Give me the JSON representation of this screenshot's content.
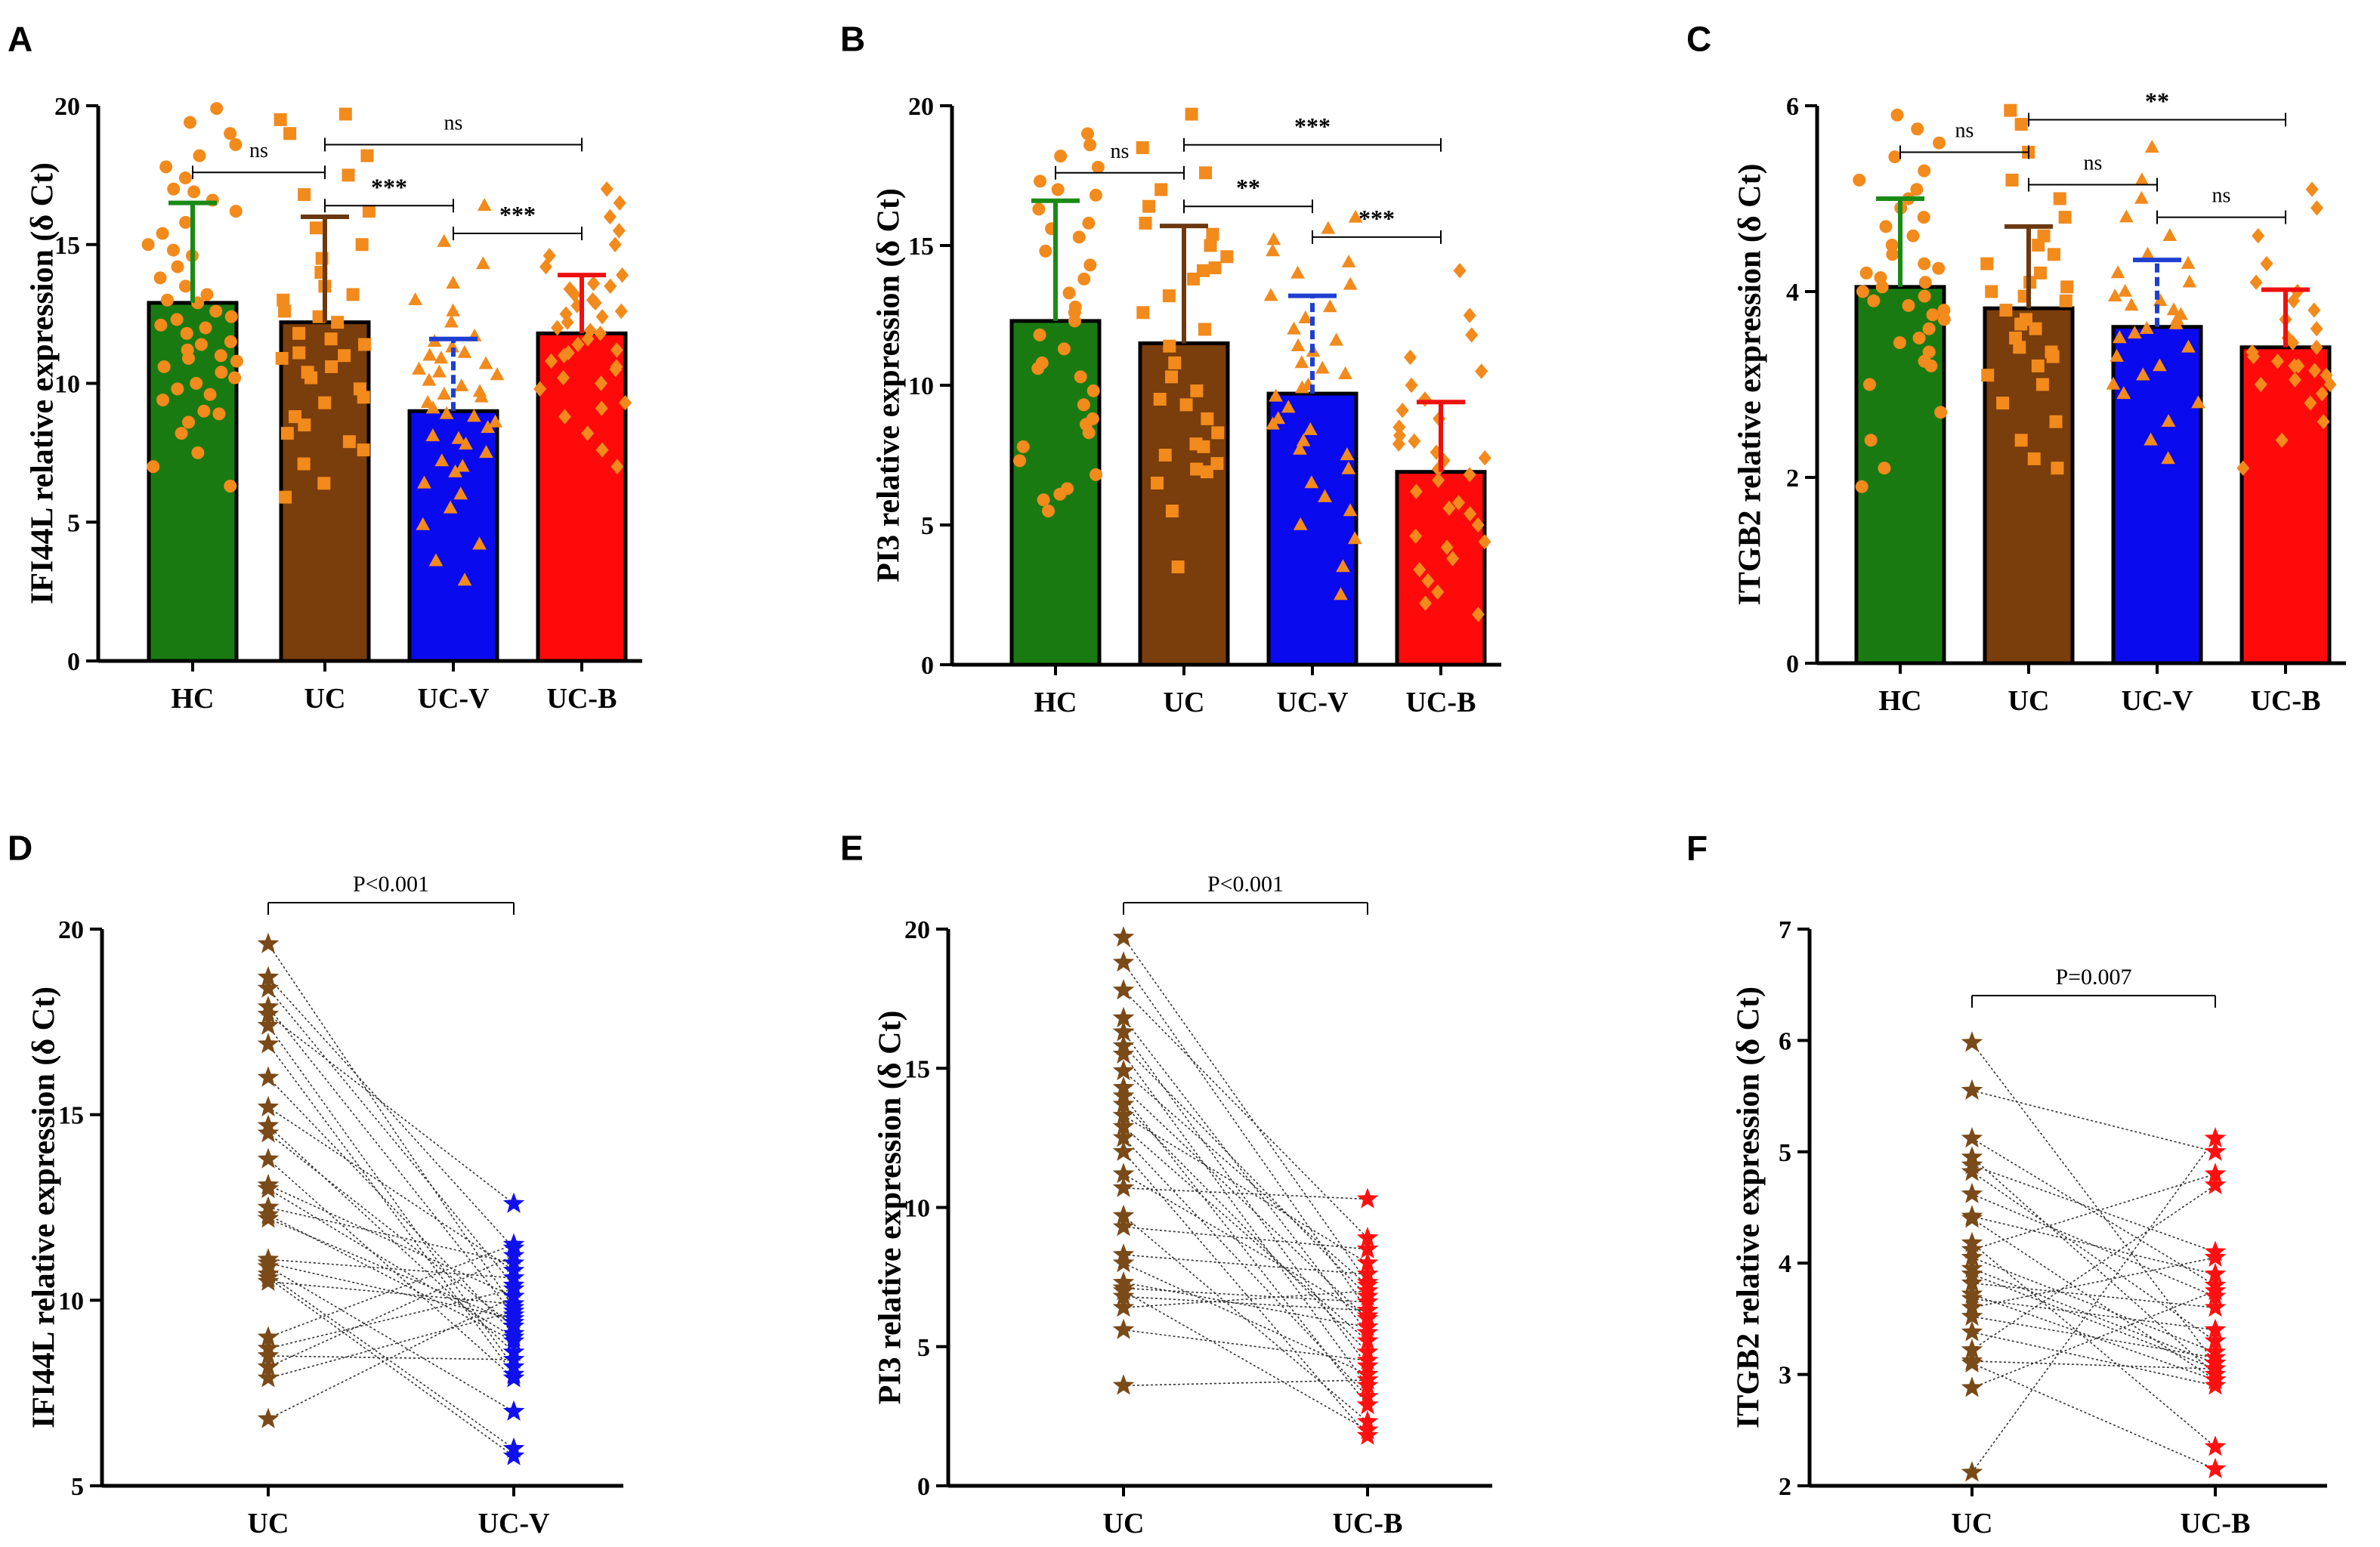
{
  "chart_data": [
    {
      "panel": "A",
      "type": "bar",
      "ylabel": "IFI44L relative expression (δ Ct)",
      "ylim": [
        0,
        20
      ],
      "yticks": [
        0,
        5,
        10,
        15,
        20
      ],
      "categories": [
        "HC",
        "UC",
        "UC-V",
        "UC-B"
      ],
      "values": [
        12.9,
        12.2,
        9.0,
        11.8
      ],
      "error": [
        3.6,
        3.8,
        2.6,
        2.1
      ],
      "colors": [
        "#1a7a12",
        "#7a3d0c",
        "#0a0aee",
        "#ff0a0a"
      ],
      "errorColors": [
        "#1a8a16",
        "#6b3810",
        "#1e3fd0",
        "#ee1010"
      ],
      "markers": [
        "circle",
        "square",
        "triangle",
        "diamond"
      ],
      "points": [
        [
          6.3,
          7.0,
          7.5,
          8.2,
          8.6,
          9.0,
          9.4,
          9.8,
          10.0,
          10.2,
          10.4,
          10.6,
          10.8,
          11.0,
          11.2,
          11.5,
          11.8,
          12.0,
          12.3,
          12.6,
          12.9,
          13.2,
          13.5,
          13.8,
          14.2,
          14.6,
          15.0,
          15.4,
          15.8,
          16.2,
          16.6,
          17.0,
          17.4,
          17.8,
          18.2,
          18.6,
          19.0,
          19.4,
          19.9,
          11.4,
          12.4,
          10.9,
          13.0,
          9.6,
          8.9,
          14.8,
          16.9,
          12.1
        ],
        [
          5.9,
          6.4,
          7.1,
          7.6,
          8.2,
          8.8,
          9.3,
          9.8,
          10.2,
          10.6,
          11.0,
          11.4,
          11.8,
          12.2,
          12.6,
          13.0,
          13.5,
          14.0,
          14.5,
          15.0,
          15.6,
          16.2,
          16.8,
          17.5,
          18.2,
          19.0,
          19.5,
          19.7,
          10.4,
          11.1,
          9.5,
          8.5,
          12.4,
          13.2,
          7.9,
          10.9,
          11.6
        ],
        [
          2.9,
          3.6,
          4.2,
          4.9,
          5.5,
          6.0,
          6.4,
          6.8,
          7.2,
          7.5,
          7.8,
          8.1,
          8.4,
          8.6,
          8.9,
          9.1,
          9.3,
          9.5,
          9.7,
          9.9,
          10.1,
          10.3,
          10.5,
          10.7,
          10.9,
          11.1,
          11.3,
          11.5,
          11.7,
          12.2,
          12.6,
          13.0,
          13.6,
          14.3,
          15.1,
          16.4,
          8.0,
          8.8,
          9.6,
          10.4,
          7.0,
          11.0
        ],
        [
          7.0,
          7.6,
          8.2,
          8.8,
          9.3,
          9.8,
          10.2,
          10.5,
          10.8,
          11.0,
          11.2,
          11.4,
          11.6,
          11.8,
          12.0,
          12.2,
          12.4,
          12.6,
          12.8,
          13.0,
          13.2,
          13.4,
          13.6,
          13.9,
          14.2,
          14.6,
          15.0,
          15.5,
          16.0,
          16.5,
          17.0,
          11.1,
          11.9,
          12.5,
          10.0,
          9.1,
          12.9,
          13.5,
          10.6
        ]
      ],
      "significance": [
        {
          "from": 0,
          "to": 1,
          "label": "ns",
          "y": 17.6
        },
        {
          "from": 1,
          "to": 3,
          "label": "ns",
          "y": 18.6
        },
        {
          "from": 1,
          "to": 2,
          "label": "***",
          "y": 16.4
        },
        {
          "from": 2,
          "to": 3,
          "label": "***",
          "y": 15.4
        }
      ]
    },
    {
      "panel": "B",
      "type": "bar",
      "ylabel": "PI3 relative expression (δ Ct)",
      "ylim": [
        0,
        20
      ],
      "yticks": [
        0,
        5,
        10,
        15,
        20
      ],
      "categories": [
        "HC",
        "UC",
        "UC-V",
        "UC-B"
      ],
      "values": [
        12.3,
        11.5,
        9.7,
        6.9
      ],
      "error": [
        4.3,
        4.2,
        3.5,
        2.5
      ],
      "colors": [
        "#1a7a12",
        "#7a3d0c",
        "#0a0aee",
        "#ff0a0a"
      ],
      "errorColors": [
        "#1a8a16",
        "#6b3810",
        "#1e3fd0",
        "#ee1010"
      ],
      "markers": [
        "circle",
        "square",
        "triangle",
        "diamond"
      ],
      "points": [
        [
          5.5,
          5.9,
          6.3,
          6.8,
          7.3,
          7.8,
          8.3,
          8.8,
          9.3,
          9.8,
          10.3,
          10.8,
          11.3,
          11.8,
          12.3,
          12.8,
          13.3,
          13.8,
          14.3,
          14.8,
          15.3,
          15.8,
          16.3,
          16.8,
          17.3,
          17.8,
          18.2,
          18.6,
          19.0,
          12.6,
          10.6,
          8.6,
          15.6,
          17.0,
          6.1
        ],
        [
          3.5,
          5.5,
          6.5,
          6.9,
          7.2,
          7.5,
          7.9,
          8.3,
          8.8,
          9.3,
          9.8,
          10.3,
          10.8,
          11.4,
          12.0,
          12.6,
          13.2,
          13.8,
          14.2,
          14.6,
          15.0,
          15.4,
          15.8,
          16.4,
          17.0,
          17.6,
          18.5,
          19.7,
          7.0,
          7.8,
          14.1,
          9.5
        ],
        [
          2.5,
          3.5,
          4.5,
          5.0,
          5.5,
          6.0,
          6.5,
          7.0,
          7.5,
          8.0,
          8.4,
          8.8,
          9.2,
          9.6,
          10.0,
          10.4,
          10.8,
          11.2,
          11.6,
          12.0,
          12.4,
          12.8,
          13.2,
          13.6,
          14.0,
          14.4,
          14.8,
          15.2,
          15.6,
          16.0,
          9.9,
          10.6,
          11.4,
          8.6,
          7.7
        ],
        [
          1.8,
          2.2,
          2.6,
          3.0,
          3.4,
          3.8,
          4.2,
          4.6,
          5.0,
          5.4,
          5.8,
          6.2,
          6.6,
          7.0,
          7.3,
          7.6,
          7.9,
          8.2,
          8.5,
          8.8,
          9.1,
          9.5,
          10.0,
          10.5,
          11.0,
          11.8,
          12.5,
          14.1,
          6.8,
          7.4,
          4.4,
          5.6,
          8.0
        ]
      ],
      "significance": [
        {
          "from": 0,
          "to": 1,
          "label": "ns",
          "y": 17.6
        },
        {
          "from": 1,
          "to": 3,
          "label": "***",
          "y": 18.6
        },
        {
          "from": 1,
          "to": 2,
          "label": "**",
          "y": 16.4
        },
        {
          "from": 2,
          "to": 3,
          "label": "***",
          "y": 15.3
        }
      ]
    },
    {
      "panel": "C",
      "type": "bar",
      "ylabel": "ITGB2 relative expression (δ Ct)",
      "ylim": [
        0,
        6
      ],
      "yticks": [
        0,
        2,
        4,
        6
      ],
      "categories": [
        "HC",
        "UC",
        "UC-V",
        "UC-B"
      ],
      "values": [
        4.05,
        3.82,
        3.62,
        3.4
      ],
      "error": [
        0.95,
        0.88,
        0.72,
        0.62
      ],
      "colors": [
        "#1a7a12",
        "#7a3d0c",
        "#0a0aee",
        "#ff0a0a"
      ],
      "errorColors": [
        "#1a8a16",
        "#6b3810",
        "#1e3fd0",
        "#ee1010"
      ],
      "markers": [
        "circle",
        "square",
        "triangle",
        "diamond"
      ],
      "points": [
        [
          1.9,
          2.1,
          2.4,
          2.7,
          3.0,
          3.2,
          3.35,
          3.5,
          3.6,
          3.7,
          3.8,
          3.85,
          3.9,
          3.95,
          4.0,
          4.05,
          4.1,
          4.15,
          4.2,
          4.3,
          4.4,
          4.5,
          4.6,
          4.7,
          4.8,
          4.9,
          5.0,
          5.1,
          5.2,
          5.3,
          5.45,
          5.6,
          5.75,
          5.9,
          3.45,
          3.75,
          4.25,
          3.25
        ],
        [
          2.1,
          2.2,
          2.4,
          2.6,
          2.8,
          3.0,
          3.1,
          3.2,
          3.3,
          3.4,
          3.5,
          3.6,
          3.7,
          3.8,
          3.9,
          4.0,
          4.05,
          4.1,
          4.2,
          4.3,
          4.4,
          4.5,
          4.6,
          4.8,
          5.0,
          5.2,
          5.5,
          5.8,
          5.95,
          3.95,
          3.65,
          3.35
        ],
        [
          2.2,
          2.4,
          2.6,
          2.8,
          2.9,
          3.0,
          3.1,
          3.2,
          3.3,
          3.4,
          3.5,
          3.6,
          3.65,
          3.7,
          3.8,
          3.85,
          3.9,
          3.95,
          4.0,
          4.1,
          4.2,
          4.3,
          4.4,
          4.6,
          4.8,
          5.0,
          5.2,
          5.55,
          3.55,
          3.75
        ],
        [
          2.1,
          2.4,
          2.6,
          2.8,
          2.9,
          3.0,
          3.05,
          3.1,
          3.15,
          3.2,
          3.25,
          3.3,
          3.35,
          3.4,
          3.5,
          3.6,
          3.7,
          3.8,
          3.9,
          4.0,
          4.1,
          4.3,
          4.6,
          4.9,
          5.1,
          3.2,
          3.45,
          3.0
        ]
      ],
      "significance": [
        {
          "from": 0,
          "to": 1,
          "label": "ns",
          "y": 5.5
        },
        {
          "from": 1,
          "to": 3,
          "label": "**",
          "y": 5.85
        },
        {
          "from": 1,
          "to": 2,
          "label": "ns",
          "y": 5.15
        },
        {
          "from": 2,
          "to": 3,
          "label": "ns",
          "y": 4.8
        }
      ]
    },
    {
      "panel": "D",
      "type": "scatter",
      "subtype": "paired",
      "ylabel": "IFI44L  relative expression (δ Ct)",
      "ylim": [
        5,
        20
      ],
      "yticks": [
        5,
        10,
        15,
        20
      ],
      "categories": [
        "UC",
        "UC-V"
      ],
      "colors": [
        "#7a4a18",
        "#1010ee"
      ],
      "pvalue": "P<0.001",
      "pairs": [
        [
          19.6,
          9.8
        ],
        [
          18.7,
          11.4
        ],
        [
          18.4,
          10.4
        ],
        [
          17.9,
          9.6
        ],
        [
          17.7,
          12.6
        ],
        [
          17.4,
          8.2
        ],
        [
          16.0,
          9.1
        ],
        [
          15.2,
          10.8
        ],
        [
          14.7,
          8.6
        ],
        [
          14.5,
          9.3
        ],
        [
          13.8,
          7.9
        ],
        [
          13.1,
          10.1
        ],
        [
          12.5,
          11.0
        ],
        [
          12.3,
          8.9
        ],
        [
          12.2,
          9.4
        ],
        [
          11.1,
          10.6
        ],
        [
          10.9,
          7.0
        ],
        [
          10.7,
          6.0
        ],
        [
          10.6,
          5.8
        ],
        [
          10.5,
          9.9
        ],
        [
          9.0,
          11.5
        ],
        [
          8.7,
          10.3
        ],
        [
          8.5,
          8.4
        ],
        [
          8.2,
          11.2
        ],
        [
          7.9,
          9.7
        ],
        [
          6.8,
          10.1
        ],
        [
          16.9,
          8.0
        ],
        [
          13.0,
          9.0
        ],
        [
          11.0,
          9.5
        ]
      ]
    },
    {
      "panel": "E",
      "type": "scatter",
      "subtype": "paired",
      "ylabel": "PI3 relative expression (δ Ct)",
      "ylim": [
        0,
        20
      ],
      "yticks": [
        0,
        5,
        10,
        15,
        20
      ],
      "categories": [
        "UC",
        "UC-B"
      ],
      "colors": [
        "#7a4a18",
        "#ff1010"
      ],
      "pvalue": "P<0.001",
      "pairs": [
        [
          19.7,
          7.3
        ],
        [
          18.8,
          6.3
        ],
        [
          17.8,
          8.9
        ],
        [
          16.8,
          5.5
        ],
        [
          16.3,
          4.3
        ],
        [
          15.8,
          6.8
        ],
        [
          15.5,
          3.6
        ],
        [
          14.9,
          7.2
        ],
        [
          14.3,
          6.0
        ],
        [
          14.0,
          2.9
        ],
        [
          13.7,
          4.8
        ],
        [
          13.3,
          8.0
        ],
        [
          12.9,
          5.2
        ],
        [
          12.5,
          3.2
        ],
        [
          10.7,
          10.3
        ],
        [
          9.7,
          2.3
        ],
        [
          9.3,
          8.5
        ],
        [
          8.3,
          7.6
        ],
        [
          8.0,
          4.0
        ],
        [
          7.3,
          5.7
        ],
        [
          7.1,
          6.6
        ],
        [
          7.0,
          2.0
        ],
        [
          6.8,
          6.3
        ],
        [
          6.4,
          7.0
        ],
        [
          5.6,
          4.5
        ],
        [
          3.6,
          3.8
        ],
        [
          12.0,
          1.8
        ],
        [
          11.2,
          6.1
        ]
      ]
    },
    {
      "panel": "F",
      "type": "scatter",
      "subtype": "paired",
      "ylabel": "ITGB2 relative expression (δ Ct)",
      "ylim": [
        2,
        7
      ],
      "yticks": [
        2,
        3,
        4,
        5,
        6,
        7
      ],
      "categories": [
        "UC",
        "UC-B"
      ],
      "colors": [
        "#7a4a18",
        "#ff1010"
      ],
      "pvalue": "P=0.007",
      "pairs": [
        [
          5.98,
          3.1
        ],
        [
          5.55,
          5.0
        ],
        [
          5.12,
          3.8
        ],
        [
          4.95,
          3.0
        ],
        [
          4.88,
          4.1
        ],
        [
          4.82,
          3.3
        ],
        [
          4.42,
          3.9
        ],
        [
          4.4,
          2.95
        ],
        [
          4.18,
          2.35
        ],
        [
          4.12,
          4.8
        ],
        [
          4.05,
          3.2
        ],
        [
          3.9,
          3.05
        ],
        [
          3.82,
          3.6
        ],
        [
          3.72,
          2.95
        ],
        [
          3.68,
          3.4
        ],
        [
          3.6,
          4.05
        ],
        [
          3.52,
          3.15
        ],
        [
          3.38,
          2.9
        ],
        [
          3.22,
          4.7
        ],
        [
          3.12,
          3.05
        ],
        [
          3.1,
          2.15
        ],
        [
          2.88,
          3.75
        ],
        [
          2.12,
          5.12
        ],
        [
          3.95,
          3.1
        ],
        [
          4.62,
          3.7
        ]
      ]
    }
  ]
}
